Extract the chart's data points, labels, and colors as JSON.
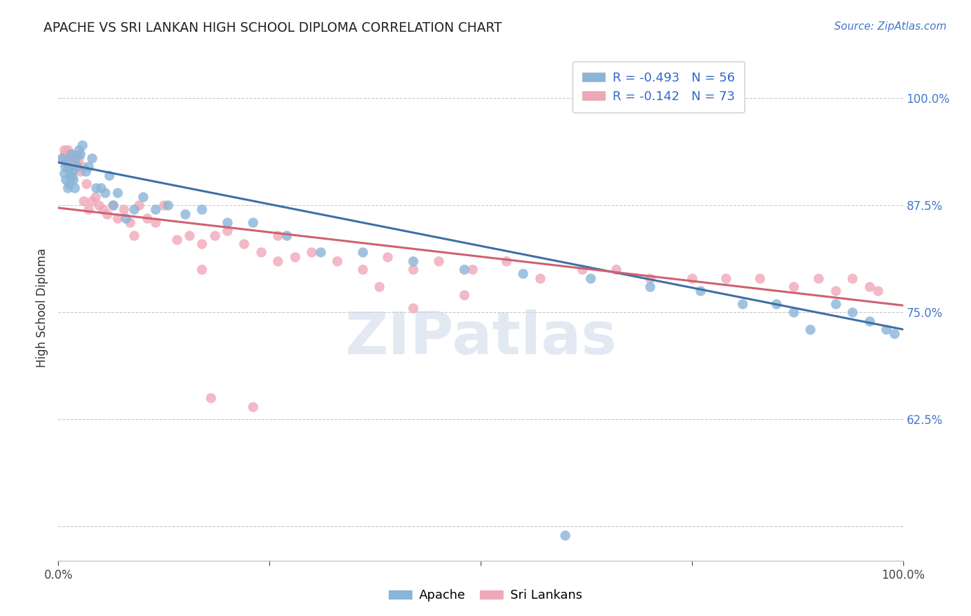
{
  "title": "APACHE VS SRI LANKAN HIGH SCHOOL DIPLOMA CORRELATION CHART",
  "source": "Source: ZipAtlas.com",
  "ylabel": "High School Diploma",
  "watermark": "ZIPatlas",
  "apache_R": -0.493,
  "apache_N": 56,
  "srilankan_R": -0.142,
  "srilankan_N": 73,
  "xlim": [
    0.0,
    1.0
  ],
  "ylim": [
    0.46,
    1.05
  ],
  "xticks": [
    0.0,
    0.25,
    0.5,
    0.75,
    1.0
  ],
  "yticks": [
    0.5,
    0.625,
    0.75,
    0.875,
    1.0
  ],
  "yticklabels": [
    "",
    "62.5%",
    "75.0%",
    "87.5%",
    "100.0%"
  ],
  "apache_color": "#8ab4d8",
  "srilankan_color": "#f0a8b8",
  "apache_line_color": "#3d6fa8",
  "srilankan_line_color": "#d06070",
  "background_color": "#ffffff",
  "grid_color": "#c8c8c8",
  "apache_x": [
    0.005,
    0.007,
    0.008,
    0.009,
    0.01,
    0.011,
    0.012,
    0.013,
    0.014,
    0.015,
    0.016,
    0.017,
    0.018,
    0.019,
    0.02,
    0.022,
    0.024,
    0.026,
    0.028,
    0.032,
    0.036,
    0.04,
    0.045,
    0.05,
    0.055,
    0.06,
    0.065,
    0.07,
    0.08,
    0.09,
    0.1,
    0.115,
    0.13,
    0.15,
    0.17,
    0.2,
    0.23,
    0.27,
    0.31,
    0.36,
    0.42,
    0.48,
    0.55,
    0.63,
    0.7,
    0.76,
    0.81,
    0.85,
    0.87,
    0.89,
    0.92,
    0.94,
    0.96,
    0.98,
    0.99,
    0.6
  ],
  "apache_y": [
    0.93,
    0.912,
    0.92,
    0.905,
    0.925,
    0.895,
    0.918,
    0.9,
    0.91,
    0.935,
    0.908,
    0.915,
    0.905,
    0.895,
    0.93,
    0.92,
    0.94,
    0.935,
    0.945,
    0.915,
    0.92,
    0.93,
    0.895,
    0.895,
    0.89,
    0.91,
    0.875,
    0.89,
    0.86,
    0.87,
    0.885,
    0.87,
    0.875,
    0.865,
    0.87,
    0.855,
    0.855,
    0.84,
    0.82,
    0.82,
    0.81,
    0.8,
    0.795,
    0.79,
    0.78,
    0.775,
    0.76,
    0.76,
    0.75,
    0.73,
    0.76,
    0.75,
    0.74,
    0.73,
    0.725,
    0.49
  ],
  "srilankan_x": [
    0.005,
    0.007,
    0.008,
    0.009,
    0.01,
    0.011,
    0.012,
    0.013,
    0.014,
    0.015,
    0.016,
    0.017,
    0.018,
    0.019,
    0.02,
    0.022,
    0.024,
    0.026,
    0.028,
    0.03,
    0.033,
    0.036,
    0.04,
    0.044,
    0.048,
    0.053,
    0.058,
    0.064,
    0.07,
    0.077,
    0.085,
    0.095,
    0.105,
    0.115,
    0.125,
    0.14,
    0.155,
    0.17,
    0.185,
    0.2,
    0.22,
    0.24,
    0.26,
    0.28,
    0.3,
    0.33,
    0.36,
    0.39,
    0.42,
    0.45,
    0.49,
    0.53,
    0.57,
    0.62,
    0.66,
    0.7,
    0.75,
    0.79,
    0.83,
    0.87,
    0.9,
    0.92,
    0.94,
    0.96,
    0.97,
    0.09,
    0.17,
    0.26,
    0.38,
    0.48,
    0.42,
    0.18,
    0.23
  ],
  "srilankan_y": [
    0.93,
    0.94,
    0.935,
    0.925,
    0.93,
    0.94,
    0.935,
    0.928,
    0.93,
    0.92,
    0.935,
    0.925,
    0.928,
    0.93,
    0.925,
    0.92,
    0.93,
    0.915,
    0.92,
    0.88,
    0.9,
    0.87,
    0.88,
    0.885,
    0.875,
    0.87,
    0.865,
    0.875,
    0.86,
    0.87,
    0.855,
    0.875,
    0.86,
    0.855,
    0.875,
    0.835,
    0.84,
    0.83,
    0.84,
    0.845,
    0.83,
    0.82,
    0.84,
    0.815,
    0.82,
    0.81,
    0.8,
    0.815,
    0.8,
    0.81,
    0.8,
    0.81,
    0.79,
    0.8,
    0.8,
    0.79,
    0.79,
    0.79,
    0.79,
    0.78,
    0.79,
    0.775,
    0.79,
    0.78,
    0.775,
    0.84,
    0.8,
    0.81,
    0.78,
    0.77,
    0.755,
    0.65,
    0.64
  ]
}
